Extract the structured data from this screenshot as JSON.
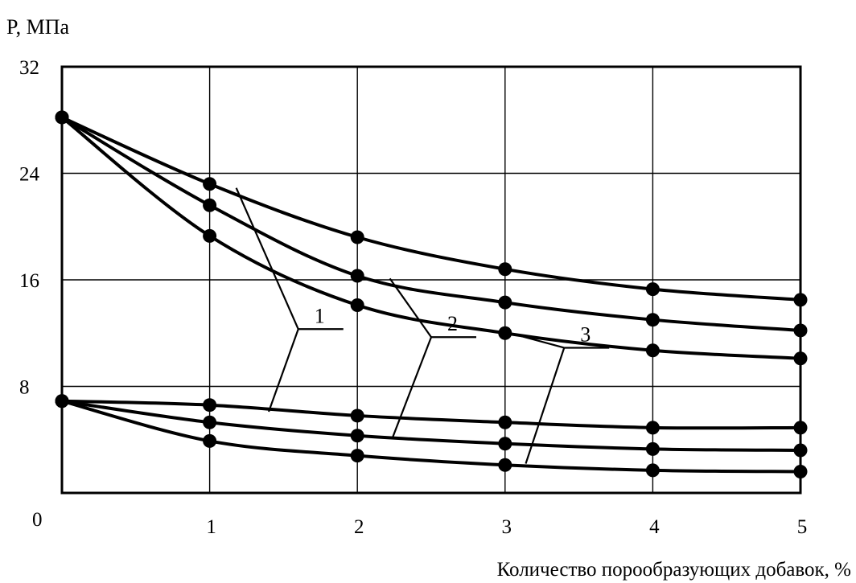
{
  "chart_data": {
    "type": "line",
    "title": "",
    "xlabel": "Количество порообразующих добавок, %",
    "ylabel": "P, МПа",
    "xlim": [
      0,
      5
    ],
    "ylim": [
      0,
      32
    ],
    "x_ticks": [
      1,
      2,
      3,
      4,
      5
    ],
    "y_ticks": [
      8,
      16,
      24,
      32
    ],
    "origin_label": "0",
    "grid": true,
    "legend": "none",
    "series": [
      {
        "label": "1",
        "x": [
          0,
          1,
          2,
          3,
          4,
          5
        ],
        "y": [
          28.2,
          23.2,
          19.2,
          16.8,
          15.3,
          14.5
        ]
      },
      {
        "label": "2",
        "x": [
          0,
          1,
          2,
          3,
          4,
          5
        ],
        "y": [
          28.2,
          21.6,
          16.3,
          14.3,
          13.0,
          12.2
        ]
      },
      {
        "label": "3",
        "x": [
          0,
          1,
          2,
          3,
          4,
          5
        ],
        "y": [
          28.2,
          19.3,
          14.1,
          12.0,
          10.7,
          10.1
        ]
      },
      {
        "label": "1",
        "x": [
          0,
          1,
          2,
          3,
          4,
          5
        ],
        "y": [
          6.9,
          6.6,
          5.8,
          5.3,
          4.9,
          4.9
        ]
      },
      {
        "label": "2",
        "x": [
          0,
          1,
          2,
          3,
          4,
          5
        ],
        "y": [
          6.9,
          5.3,
          4.3,
          3.7,
          3.3,
          3.2
        ]
      },
      {
        "label": "3",
        "x": [
          0,
          1,
          2,
          3,
          4,
          5
        ],
        "y": [
          6.9,
          3.9,
          2.8,
          2.1,
          1.7,
          1.6
        ]
      }
    ],
    "callouts": [
      {
        "text": "1",
        "targets": [
          [
            1.18,
            22.9
          ],
          [
            1.4,
            6.1
          ]
        ]
      },
      {
        "text": "2",
        "targets": [
          [
            2.22,
            16.1
          ],
          [
            2.24,
            4.2
          ]
        ]
      },
      {
        "text": "3",
        "targets": [
          [
            3.1,
            11.8
          ],
          [
            3.14,
            2.2
          ]
        ]
      }
    ],
    "colors": {
      "line": "#000000",
      "grid": "#000000",
      "marker": "#000000"
    }
  }
}
